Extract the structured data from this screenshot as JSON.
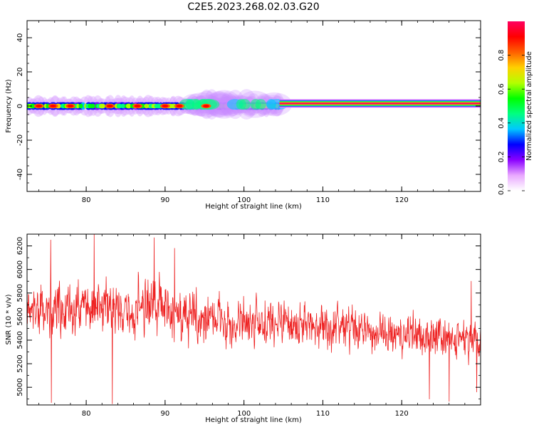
{
  "figure": {
    "title": "C2E5.2023.268.02.03.G20"
  },
  "chart_data": [
    {
      "type": "heatmap",
      "name": "spectrogram",
      "xlabel": "Height of straight line (km)",
      "ylabel": "Frequency (Hz)",
      "xlim": [
        72.5,
        130
      ],
      "ylim": [
        -50,
        50
      ],
      "xticks": [
        80,
        90,
        100,
        110,
        120
      ],
      "yticks": [
        -40,
        -20,
        0,
        20,
        40
      ],
      "grid": false,
      "colorbar": {
        "label": "Normalized spectral amplitude",
        "range": [
          0,
          1
        ],
        "ticks": [
          "0.0",
          "0.2",
          "0.4",
          "0.6",
          "0.8"
        ],
        "colormap": [
          "#ffffff",
          "#e9a8ff",
          "#8a00ff",
          "#0000ff",
          "#00c8ff",
          "#00ff80",
          "#00ff00",
          "#b4ff00",
          "#ffd000",
          "#ff6000",
          "#ff0000",
          "#ff0060"
        ]
      },
      "segments": [
        {
          "x": [
            72.5,
            104.5
          ],
          "f": 0,
          "peak": 0.9,
          "spread_hz": 5,
          "style": "mottled"
        },
        {
          "x": [
            92.5,
            104.5
          ],
          "f": 1,
          "peak": 0.5,
          "spread_hz": 7,
          "style": "haze"
        },
        {
          "x": [
            104.5,
            130
          ],
          "f": 1.5,
          "peak": 1.0,
          "spread_hz": 2.5,
          "style": "band"
        }
      ],
      "hot_spots": [
        {
          "x": 74.0,
          "f": 0
        },
        {
          "x": 75.8,
          "f": 0
        },
        {
          "x": 78.0,
          "f": 0
        },
        {
          "x": 83.0,
          "f": 0
        },
        {
          "x": 86.5,
          "f": 0
        },
        {
          "x": 90.0,
          "f": 0
        },
        {
          "x": 91.8,
          "f": 0
        },
        {
          "x": 95.2,
          "f": 0
        }
      ]
    },
    {
      "type": "line",
      "name": "snr",
      "xlabel": "Height of straight line (km)",
      "ylabel": "SNR (10 * v/v)",
      "xlim": [
        72.5,
        130
      ],
      "ylim": [
        4850,
        6300
      ],
      "xticks": [
        80,
        90,
        100,
        110,
        120
      ],
      "yticks": [
        5000,
        5200,
        5400,
        5600,
        5800,
        6000,
        6200
      ],
      "grid": false,
      "series": [
        {
          "color": "#ee2222",
          "trend": [
            [
              72.5,
              5650
            ],
            [
              76,
              5620
            ],
            [
              80,
              5680
            ],
            [
              84,
              5640
            ],
            [
              88,
              5700
            ],
            [
              92,
              5650
            ],
            [
              96,
              5560
            ],
            [
              100,
              5550
            ],
            [
              104,
              5570
            ],
            [
              108,
              5520
            ],
            [
              112,
              5500
            ],
            [
              116,
              5470
            ],
            [
              120,
              5460
            ],
            [
              124,
              5420
            ],
            [
              128,
              5400
            ],
            [
              130,
              5430
            ]
          ],
          "amplitude": [
            [
              72.5,
              230
            ],
            [
              90,
              230
            ],
            [
              100,
              190
            ],
            [
              115,
              170
            ],
            [
              130,
              150
            ]
          ],
          "spikes": [
            [
              75.5,
              6250
            ],
            [
              81.0,
              6300
            ],
            [
              88.6,
              6270
            ],
            [
              91.2,
              6180
            ],
            [
              128.8,
              5900
            ],
            [
              75.6,
              4870
            ],
            [
              83.3,
              4860
            ],
            [
              123.5,
              4900
            ],
            [
              126.0,
              4880
            ],
            [
              129.5,
              4960
            ]
          ]
        }
      ]
    }
  ]
}
